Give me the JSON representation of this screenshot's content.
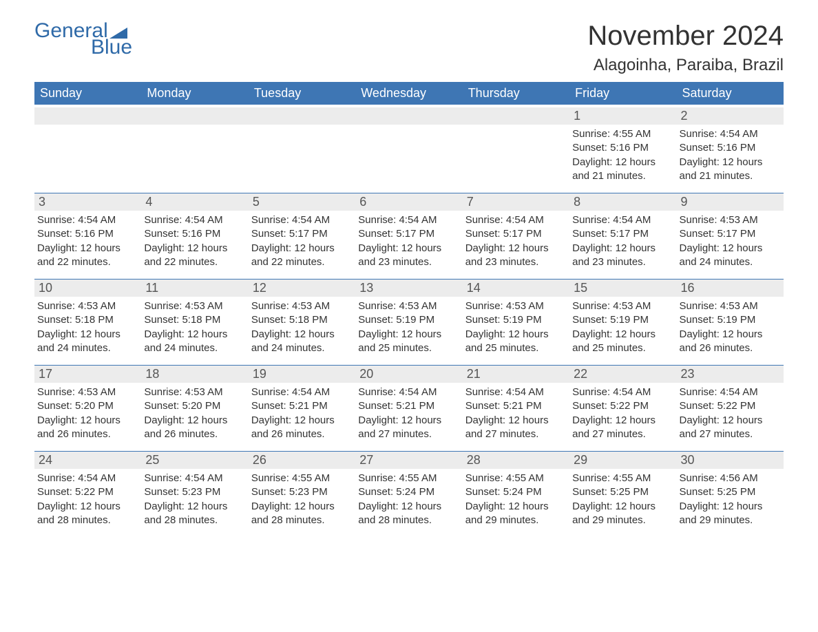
{
  "logo": {
    "text_general": "General",
    "text_blue": "Blue",
    "flag_color": "#2f6aa8"
  },
  "title": "November 2024",
  "location": "Alagoinha, Paraiba, Brazil",
  "day_headers": [
    "Sunday",
    "Monday",
    "Tuesday",
    "Wednesday",
    "Thursday",
    "Friday",
    "Saturday"
  ],
  "colors": {
    "header_bg": "#3e76b4",
    "header_text": "#ffffff",
    "daynum_bg": "#ececec",
    "daynum_text": "#555555",
    "body_text": "#333333",
    "rule": "#3e76b4",
    "page_bg": "#ffffff",
    "logo_text": "#2f6aa8"
  },
  "typography": {
    "title_fontsize": 40,
    "location_fontsize": 24,
    "dayhead_fontsize": 18,
    "daynum_fontsize": 18,
    "body_fontsize": 15,
    "logo_fontsize": 30
  },
  "weeks": [
    [
      {
        "num": "",
        "sunrise": "",
        "sunset": "",
        "daylight": ""
      },
      {
        "num": "",
        "sunrise": "",
        "sunset": "",
        "daylight": ""
      },
      {
        "num": "",
        "sunrise": "",
        "sunset": "",
        "daylight": ""
      },
      {
        "num": "",
        "sunrise": "",
        "sunset": "",
        "daylight": ""
      },
      {
        "num": "",
        "sunrise": "",
        "sunset": "",
        "daylight": ""
      },
      {
        "num": "1",
        "sunrise": "Sunrise: 4:55 AM",
        "sunset": "Sunset: 5:16 PM",
        "daylight": "Daylight: 12 hours and 21 minutes."
      },
      {
        "num": "2",
        "sunrise": "Sunrise: 4:54 AM",
        "sunset": "Sunset: 5:16 PM",
        "daylight": "Daylight: 12 hours and 21 minutes."
      }
    ],
    [
      {
        "num": "3",
        "sunrise": "Sunrise: 4:54 AM",
        "sunset": "Sunset: 5:16 PM",
        "daylight": "Daylight: 12 hours and 22 minutes."
      },
      {
        "num": "4",
        "sunrise": "Sunrise: 4:54 AM",
        "sunset": "Sunset: 5:16 PM",
        "daylight": "Daylight: 12 hours and 22 minutes."
      },
      {
        "num": "5",
        "sunrise": "Sunrise: 4:54 AM",
        "sunset": "Sunset: 5:17 PM",
        "daylight": "Daylight: 12 hours and 22 minutes."
      },
      {
        "num": "6",
        "sunrise": "Sunrise: 4:54 AM",
        "sunset": "Sunset: 5:17 PM",
        "daylight": "Daylight: 12 hours and 23 minutes."
      },
      {
        "num": "7",
        "sunrise": "Sunrise: 4:54 AM",
        "sunset": "Sunset: 5:17 PM",
        "daylight": "Daylight: 12 hours and 23 minutes."
      },
      {
        "num": "8",
        "sunrise": "Sunrise: 4:54 AM",
        "sunset": "Sunset: 5:17 PM",
        "daylight": "Daylight: 12 hours and 23 minutes."
      },
      {
        "num": "9",
        "sunrise": "Sunrise: 4:53 AM",
        "sunset": "Sunset: 5:17 PM",
        "daylight": "Daylight: 12 hours and 24 minutes."
      }
    ],
    [
      {
        "num": "10",
        "sunrise": "Sunrise: 4:53 AM",
        "sunset": "Sunset: 5:18 PM",
        "daylight": "Daylight: 12 hours and 24 minutes."
      },
      {
        "num": "11",
        "sunrise": "Sunrise: 4:53 AM",
        "sunset": "Sunset: 5:18 PM",
        "daylight": "Daylight: 12 hours and 24 minutes."
      },
      {
        "num": "12",
        "sunrise": "Sunrise: 4:53 AM",
        "sunset": "Sunset: 5:18 PM",
        "daylight": "Daylight: 12 hours and 24 minutes."
      },
      {
        "num": "13",
        "sunrise": "Sunrise: 4:53 AM",
        "sunset": "Sunset: 5:19 PM",
        "daylight": "Daylight: 12 hours and 25 minutes."
      },
      {
        "num": "14",
        "sunrise": "Sunrise: 4:53 AM",
        "sunset": "Sunset: 5:19 PM",
        "daylight": "Daylight: 12 hours and 25 minutes."
      },
      {
        "num": "15",
        "sunrise": "Sunrise: 4:53 AM",
        "sunset": "Sunset: 5:19 PM",
        "daylight": "Daylight: 12 hours and 25 minutes."
      },
      {
        "num": "16",
        "sunrise": "Sunrise: 4:53 AM",
        "sunset": "Sunset: 5:19 PM",
        "daylight": "Daylight: 12 hours and 26 minutes."
      }
    ],
    [
      {
        "num": "17",
        "sunrise": "Sunrise: 4:53 AM",
        "sunset": "Sunset: 5:20 PM",
        "daylight": "Daylight: 12 hours and 26 minutes."
      },
      {
        "num": "18",
        "sunrise": "Sunrise: 4:53 AM",
        "sunset": "Sunset: 5:20 PM",
        "daylight": "Daylight: 12 hours and 26 minutes."
      },
      {
        "num": "19",
        "sunrise": "Sunrise: 4:54 AM",
        "sunset": "Sunset: 5:21 PM",
        "daylight": "Daylight: 12 hours and 26 minutes."
      },
      {
        "num": "20",
        "sunrise": "Sunrise: 4:54 AM",
        "sunset": "Sunset: 5:21 PM",
        "daylight": "Daylight: 12 hours and 27 minutes."
      },
      {
        "num": "21",
        "sunrise": "Sunrise: 4:54 AM",
        "sunset": "Sunset: 5:21 PM",
        "daylight": "Daylight: 12 hours and 27 minutes."
      },
      {
        "num": "22",
        "sunrise": "Sunrise: 4:54 AM",
        "sunset": "Sunset: 5:22 PM",
        "daylight": "Daylight: 12 hours and 27 minutes."
      },
      {
        "num": "23",
        "sunrise": "Sunrise: 4:54 AM",
        "sunset": "Sunset: 5:22 PM",
        "daylight": "Daylight: 12 hours and 27 minutes."
      }
    ],
    [
      {
        "num": "24",
        "sunrise": "Sunrise: 4:54 AM",
        "sunset": "Sunset: 5:22 PM",
        "daylight": "Daylight: 12 hours and 28 minutes."
      },
      {
        "num": "25",
        "sunrise": "Sunrise: 4:54 AM",
        "sunset": "Sunset: 5:23 PM",
        "daylight": "Daylight: 12 hours and 28 minutes."
      },
      {
        "num": "26",
        "sunrise": "Sunrise: 4:55 AM",
        "sunset": "Sunset: 5:23 PM",
        "daylight": "Daylight: 12 hours and 28 minutes."
      },
      {
        "num": "27",
        "sunrise": "Sunrise: 4:55 AM",
        "sunset": "Sunset: 5:24 PM",
        "daylight": "Daylight: 12 hours and 28 minutes."
      },
      {
        "num": "28",
        "sunrise": "Sunrise: 4:55 AM",
        "sunset": "Sunset: 5:24 PM",
        "daylight": "Daylight: 12 hours and 29 minutes."
      },
      {
        "num": "29",
        "sunrise": "Sunrise: 4:55 AM",
        "sunset": "Sunset: 5:25 PM",
        "daylight": "Daylight: 12 hours and 29 minutes."
      },
      {
        "num": "30",
        "sunrise": "Sunrise: 4:56 AM",
        "sunset": "Sunset: 5:25 PM",
        "daylight": "Daylight: 12 hours and 29 minutes."
      }
    ]
  ]
}
